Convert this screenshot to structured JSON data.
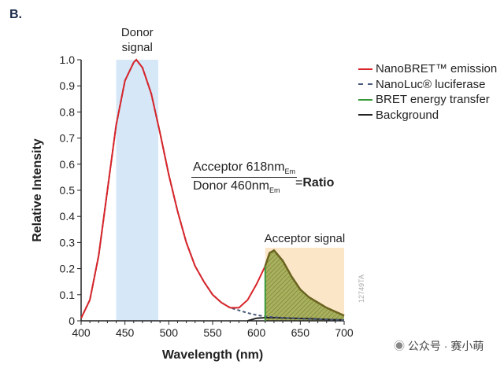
{
  "panel_label": "B.",
  "chart_data": {
    "type": "line",
    "xlabel": "Wavelength (nm)",
    "ylabel": "Relative Intensity",
    "xlim": [
      400,
      700
    ],
    "ylim": [
      0,
      1.0
    ],
    "xticks": [
      400,
      450,
      500,
      550,
      600,
      650,
      700
    ],
    "yticks": [
      0,
      0.1,
      0.2,
      0.3,
      0.4,
      0.5,
      0.6,
      0.7,
      0.8,
      0.9,
      1.0
    ],
    "grid": false,
    "legend_position": "top-right",
    "series": [
      {
        "name": "NanoBRET™ emission",
        "color": "#d9252a",
        "style": "solid",
        "x": [
          400,
          410,
          420,
          430,
          440,
          450,
          460,
          463,
          470,
          480,
          490,
          500,
          510,
          520,
          530,
          540,
          550,
          560,
          570,
          580,
          590,
          600,
          610,
          615,
          620,
          630,
          640,
          650,
          660,
          670,
          680,
          690,
          700
        ],
        "y": [
          0.01,
          0.08,
          0.25,
          0.5,
          0.75,
          0.92,
          0.99,
          1.0,
          0.97,
          0.87,
          0.72,
          0.56,
          0.42,
          0.3,
          0.21,
          0.15,
          0.1,
          0.07,
          0.05,
          0.05,
          0.08,
          0.14,
          0.21,
          0.26,
          0.27,
          0.23,
          0.17,
          0.12,
          0.09,
          0.07,
          0.05,
          0.035,
          0.02
        ]
      },
      {
        "name": "NanoLuc® luciferase",
        "color": "#4a5a7a",
        "style": "dashed",
        "x": [
          400,
          410,
          420,
          430,
          440,
          450,
          460,
          463,
          470,
          480,
          490,
          500,
          510,
          520,
          530,
          540,
          550,
          560,
          570,
          580,
          590,
          600,
          610,
          620,
          640,
          660,
          680,
          700
        ],
        "y": [
          0.01,
          0.08,
          0.25,
          0.5,
          0.75,
          0.92,
          0.99,
          1.0,
          0.97,
          0.87,
          0.72,
          0.56,
          0.42,
          0.3,
          0.21,
          0.15,
          0.1,
          0.07,
          0.05,
          0.04,
          0.03,
          0.022,
          0.017,
          0.014,
          0.01,
          0.007,
          0.005,
          0.003
        ]
      },
      {
        "name": "BRET energy transfer",
        "color": "#3a9a3a",
        "style": "solid",
        "x": [
          610,
          610
        ],
        "y": [
          0,
          0.21
        ]
      },
      {
        "name": "Background",
        "color": "#222222",
        "style": "solid",
        "x": [
          590,
          600,
          610,
          620,
          640,
          660,
          680,
          700
        ],
        "y": [
          0.0,
          0.01,
          0.012,
          0.012,
          0.01,
          0.008,
          0.005,
          0.003
        ]
      }
    ],
    "regions": [
      {
        "label": "Donor signal",
        "x": [
          440,
          488
        ],
        "ymax": 1.0,
        "color": "#d6e8f8"
      },
      {
        "label": "Acceptor signal",
        "x": [
          610,
          700
        ],
        "ymax": 0.28,
        "color": "#fbe6c8"
      }
    ],
    "annotations": {
      "numerator": "Acceptor 618nm",
      "numerator_sub": "Em",
      "denominator": "Donor 460nm",
      "denominator_sub": "Em",
      "equals": "= ",
      "result": "Ratio",
      "code": "12749TA"
    }
  },
  "watermark": "公众号 · 赛小萌"
}
